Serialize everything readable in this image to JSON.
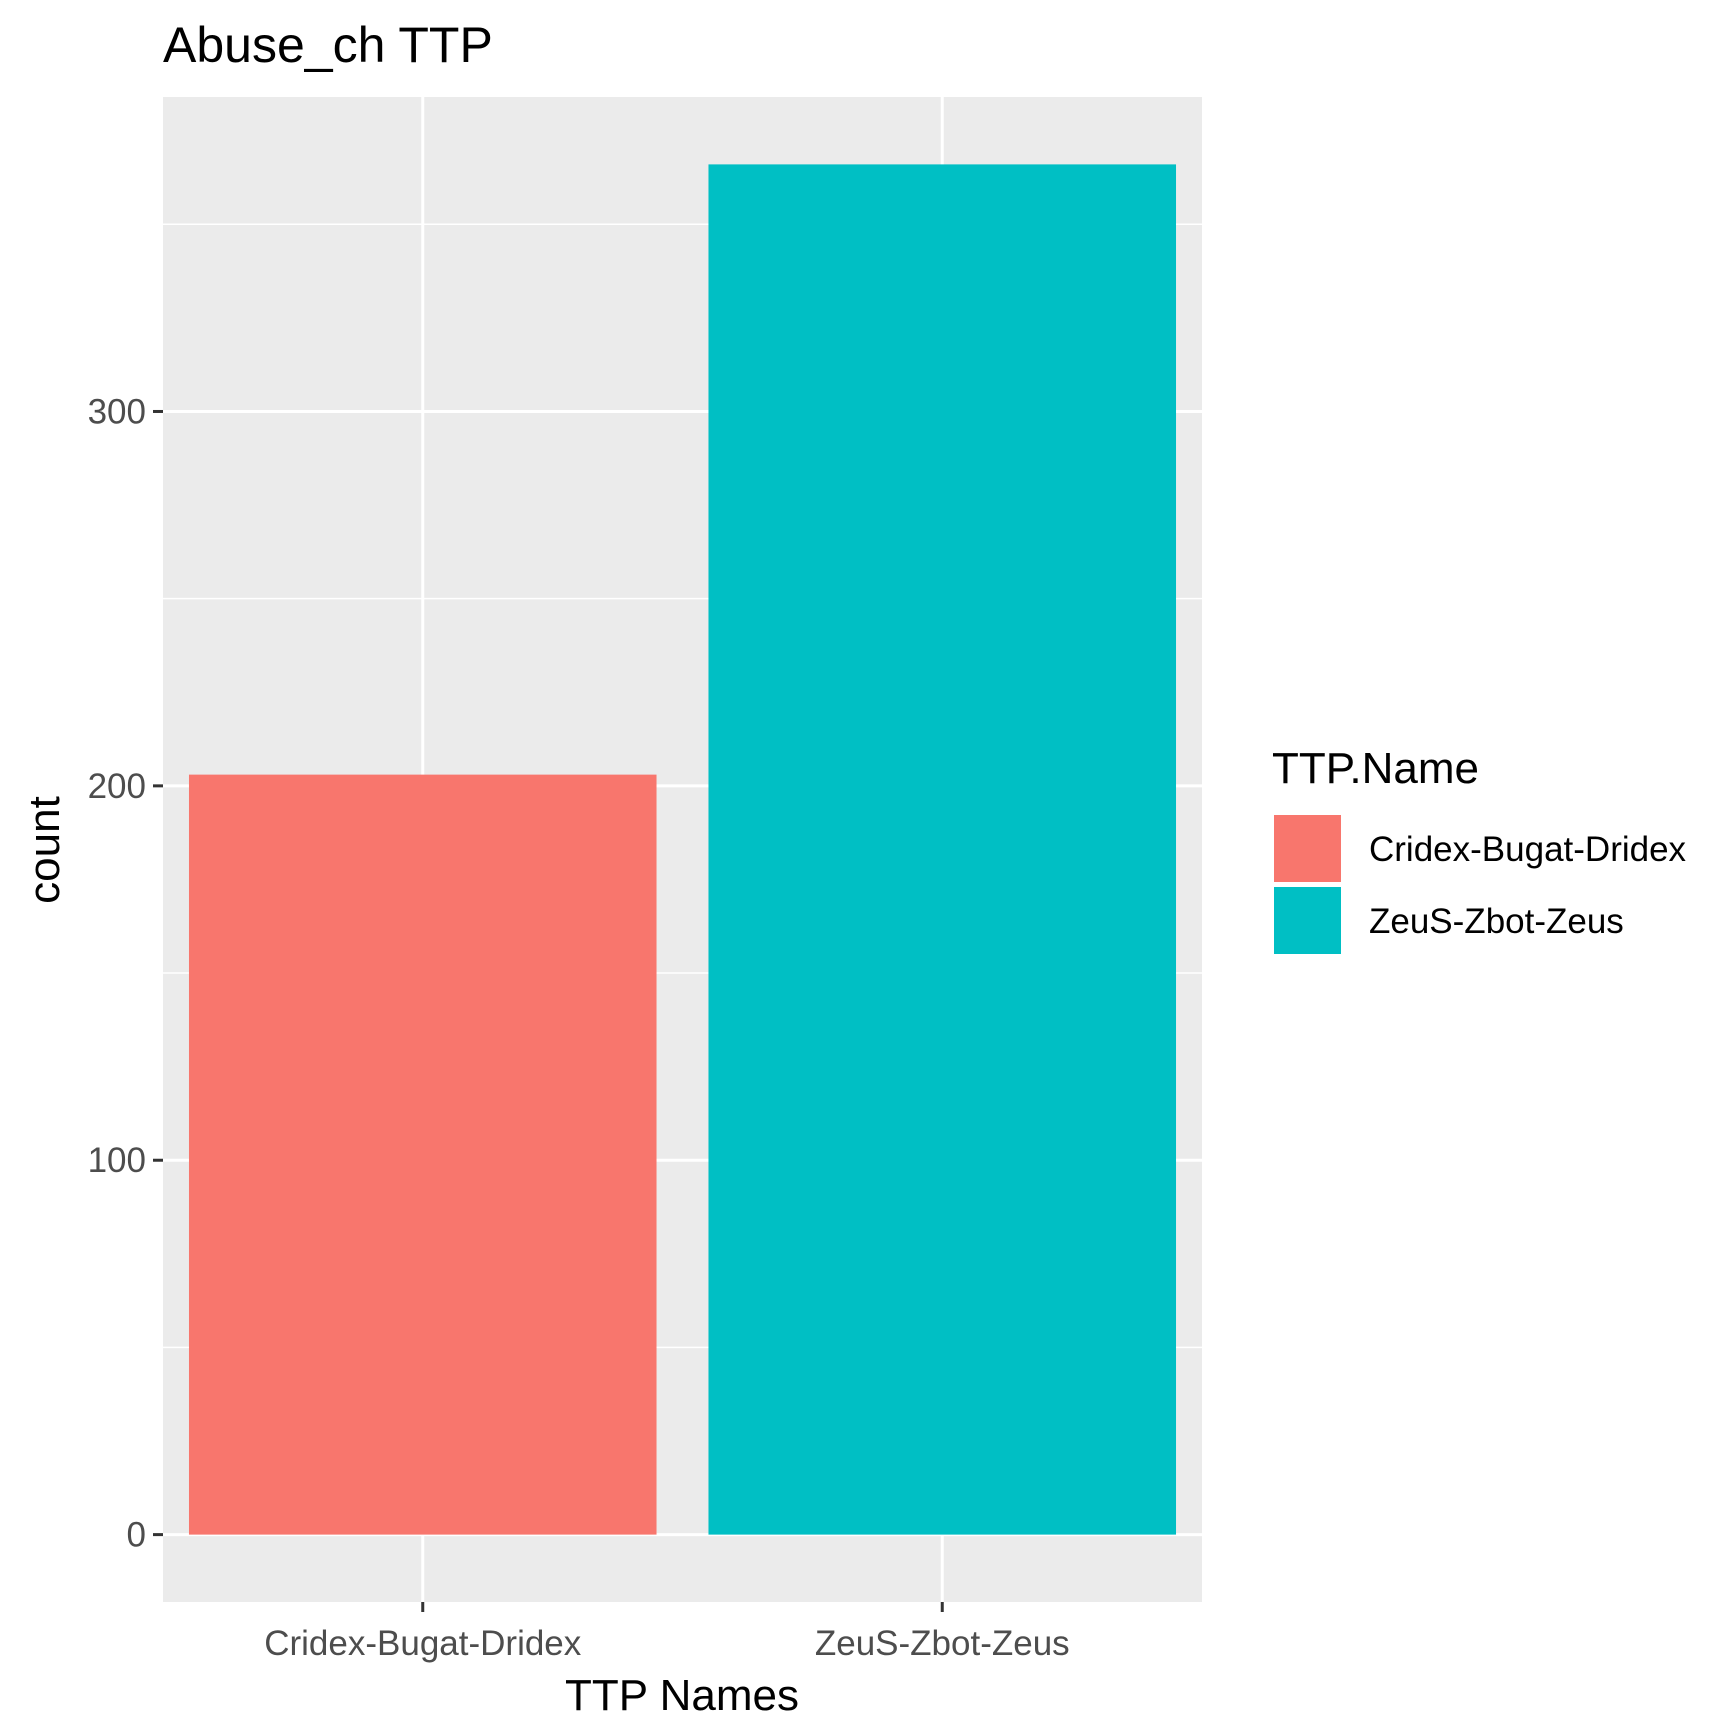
{
  "chart_data": {
    "type": "bar",
    "title": "Abuse_ch TTP",
    "xlabel": "TTP Names",
    "ylabel": "count",
    "categories": [
      "Cridex-Bugat-Dridex",
      "ZeuS-Zbot-Zeus"
    ],
    "values": [
      203,
      366
    ],
    "yticks": [
      0,
      100,
      200,
      300
    ],
    "ylim": [
      -18,
      384
    ],
    "grid": true,
    "legend": {
      "title": "TTP.Name",
      "placement": "right",
      "entries": [
        "Cridex-Bugat-Dridex",
        "ZeuS-Zbot-Zeus"
      ]
    },
    "colors": [
      "#F8766D",
      "#00BFC4"
    ],
    "panel_background": "#EBEBEB"
  }
}
